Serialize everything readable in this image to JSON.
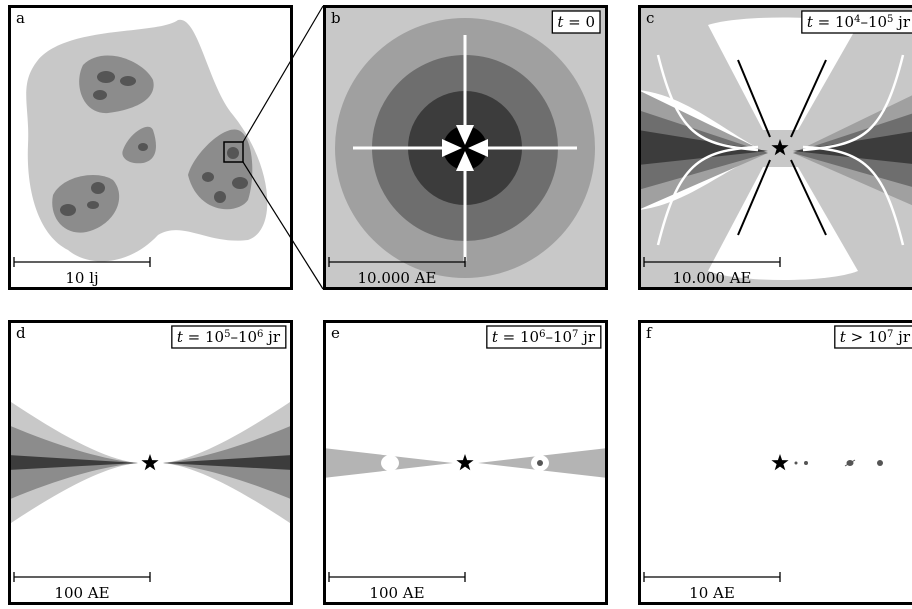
{
  "panels": [
    {
      "label": "a",
      "scale": "10 lj"
    },
    {
      "label": "b",
      "time": [
        {
          "i": "t"
        },
        {
          "t": " = 0"
        }
      ],
      "scale": "10.000 AE"
    },
    {
      "label": "c",
      "time": [
        {
          "i": "t"
        },
        {
          "t": " = 10"
        },
        {
          "sup": "4"
        },
        {
          "t": "–10"
        },
        {
          "sup": "5"
        },
        {
          "t": " jr"
        }
      ],
      "scale": "10.000 AE"
    },
    {
      "label": "d",
      "time": [
        {
          "i": "t"
        },
        {
          "t": " = 10"
        },
        {
          "sup": "5"
        },
        {
          "t": "–10"
        },
        {
          "sup": "6"
        },
        {
          "t": " jr"
        }
      ],
      "scale": "100 AE"
    },
    {
      "label": "e",
      "time": [
        {
          "i": "t"
        },
        {
          "t": " = 10"
        },
        {
          "sup": "6"
        },
        {
          "t": "–10"
        },
        {
          "sup": "7"
        },
        {
          "t": " jr"
        }
      ],
      "scale": "100 AE"
    },
    {
      "label": "f",
      "time": [
        {
          "i": "t"
        },
        {
          "t": " > 10"
        },
        {
          "sup": "7"
        },
        {
          "t": " jr"
        }
      ],
      "scale": "10 AE"
    }
  ]
}
